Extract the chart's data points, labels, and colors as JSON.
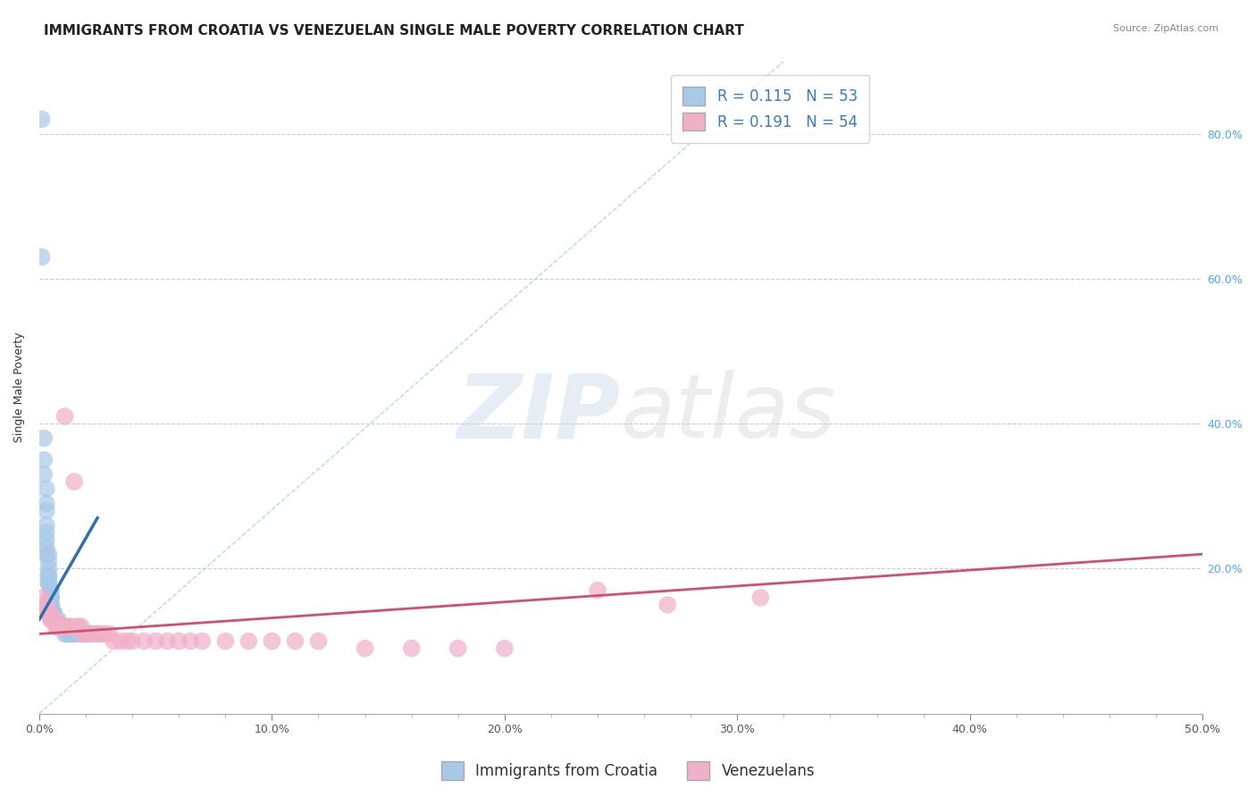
{
  "title": "IMMIGRANTS FROM CROATIA VS VENEZUELAN SINGLE MALE POVERTY CORRELATION CHART",
  "source": "Source: ZipAtlas.com",
  "ylabel": "Single Male Poverty",
  "legend_items": [
    {
      "label": "Immigrants from Croatia",
      "color": "#a8c8e8",
      "R": 0.115,
      "N": 53
    },
    {
      "label": "Venezuelans",
      "color": "#f0b0c8",
      "R": 0.191,
      "N": 54
    }
  ],
  "xlim": [
    0.0,
    0.5
  ],
  "ylim": [
    0.0,
    0.9
  ],
  "watermark_zip": "ZIP",
  "watermark_atlas": "atlas",
  "blue_scatter_x": [
    0.001,
    0.001,
    0.002,
    0.002,
    0.002,
    0.003,
    0.003,
    0.003,
    0.003,
    0.003,
    0.003,
    0.003,
    0.003,
    0.004,
    0.004,
    0.004,
    0.004,
    0.004,
    0.004,
    0.004,
    0.005,
    0.005,
    0.005,
    0.005,
    0.005,
    0.005,
    0.005,
    0.005,
    0.006,
    0.006,
    0.006,
    0.007,
    0.007,
    0.007,
    0.008,
    0.008,
    0.008,
    0.009,
    0.009,
    0.01,
    0.01,
    0.011,
    0.011,
    0.012,
    0.013,
    0.013,
    0.014,
    0.015,
    0.016,
    0.018,
    0.02,
    0.022,
    0.025
  ],
  "blue_scatter_y": [
    0.82,
    0.63,
    0.38,
    0.35,
    0.33,
    0.31,
    0.29,
    0.28,
    0.26,
    0.25,
    0.24,
    0.23,
    0.22,
    0.22,
    0.21,
    0.2,
    0.19,
    0.19,
    0.18,
    0.18,
    0.17,
    0.17,
    0.16,
    0.16,
    0.16,
    0.15,
    0.15,
    0.15,
    0.14,
    0.14,
    0.14,
    0.13,
    0.13,
    0.13,
    0.13,
    0.12,
    0.12,
    0.12,
    0.12,
    0.12,
    0.12,
    0.12,
    0.11,
    0.11,
    0.11,
    0.11,
    0.11,
    0.11,
    0.11,
    0.11,
    0.11,
    0.11,
    0.11
  ],
  "pink_scatter_x": [
    0.001,
    0.002,
    0.003,
    0.003,
    0.004,
    0.004,
    0.005,
    0.005,
    0.006,
    0.006,
    0.007,
    0.007,
    0.008,
    0.008,
    0.009,
    0.01,
    0.01,
    0.011,
    0.012,
    0.013,
    0.014,
    0.015,
    0.016,
    0.017,
    0.018,
    0.019,
    0.02,
    0.022,
    0.024,
    0.026,
    0.028,
    0.03,
    0.032,
    0.035,
    0.038,
    0.04,
    0.045,
    0.05,
    0.055,
    0.06,
    0.065,
    0.07,
    0.08,
    0.09,
    0.1,
    0.11,
    0.12,
    0.14,
    0.16,
    0.18,
    0.2,
    0.24,
    0.27,
    0.31
  ],
  "pink_scatter_y": [
    0.16,
    0.15,
    0.15,
    0.14,
    0.14,
    0.14,
    0.13,
    0.13,
    0.13,
    0.13,
    0.13,
    0.12,
    0.12,
    0.12,
    0.12,
    0.12,
    0.12,
    0.41,
    0.12,
    0.12,
    0.12,
    0.32,
    0.12,
    0.12,
    0.12,
    0.11,
    0.11,
    0.11,
    0.11,
    0.11,
    0.11,
    0.11,
    0.1,
    0.1,
    0.1,
    0.1,
    0.1,
    0.1,
    0.1,
    0.1,
    0.1,
    0.1,
    0.1,
    0.1,
    0.1,
    0.1,
    0.1,
    0.09,
    0.09,
    0.09,
    0.09,
    0.17,
    0.15,
    0.16
  ],
  "blue_line_x": [
    0.0,
    0.025
  ],
  "blue_line_y": [
    0.13,
    0.27
  ],
  "pink_line_x": [
    0.0,
    0.5
  ],
  "pink_line_y": [
    0.11,
    0.22
  ],
  "diagonal_line_x": [
    0.0,
    0.32
  ],
  "diagonal_line_y": [
    0.0,
    0.9
  ],
  "title_fontsize": 11,
  "label_fontsize": 9,
  "tick_fontsize": 9,
  "legend_fontsize": 12
}
